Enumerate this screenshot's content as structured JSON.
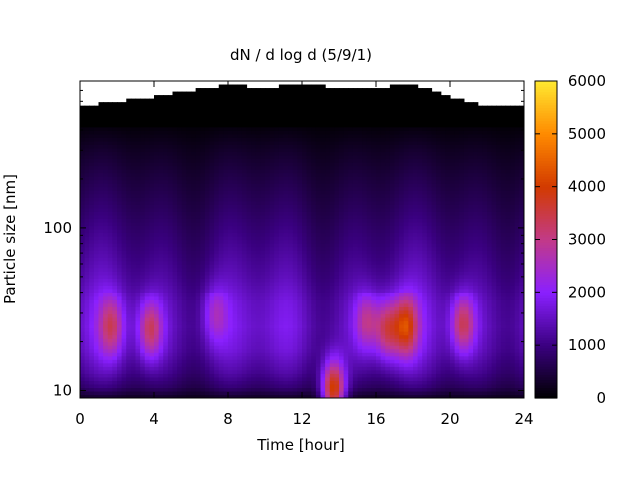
{
  "chart_data": {
    "type": "heatmap",
    "title": "dN / d log d (5/9/1)",
    "xlabel": "Time [hour]",
    "ylabel": "Particle size [nm]",
    "x_ticks": [
      0,
      4,
      8,
      12,
      16,
      20,
      24
    ],
    "xlim": [
      0,
      24
    ],
    "y_scale": "log",
    "ylim": [
      9,
      800
    ],
    "y_ticks": [
      10,
      100
    ],
    "colorbar": {
      "range": [
        0,
        6000
      ],
      "ticks": [
        0,
        1000,
        2000,
        3000,
        4000,
        5000,
        6000
      ],
      "palette": [
        "#000000",
        "#3a0080",
        "#8a20ff",
        "#c23a88",
        "#d23a00",
        "#ff8a00",
        "#ffe830"
      ]
    },
    "base_profile": [
      {
        "size_nm": 9.3,
        "value": 400
      },
      {
        "size_nm": 10.5,
        "value": 900
      },
      {
        "size_nm": 13,
        "value": 1300
      },
      {
        "size_nm": 18,
        "value": 1700
      },
      {
        "size_nm": 25,
        "value": 1850
      },
      {
        "size_nm": 35,
        "value": 1750
      },
      {
        "size_nm": 50,
        "value": 1450
      },
      {
        "size_nm": 80,
        "value": 1150
      },
      {
        "size_nm": 130,
        "value": 850
      },
      {
        "size_nm": 200,
        "value": 600
      },
      {
        "size_nm": 300,
        "value": 350
      },
      {
        "size_nm": 420,
        "value": 100
      }
    ],
    "hotspots": [
      {
        "hour": 1.7,
        "size_nm": 25,
        "value": 3200
      },
      {
        "hour": 3.8,
        "size_nm": 24,
        "value": 3500
      },
      {
        "hour": 7.3,
        "size_nm": 30,
        "value": 2700
      },
      {
        "hour": 13.7,
        "size_nm": 10,
        "value": 5200
      },
      {
        "hour": 15.5,
        "size_nm": 27,
        "value": 3100
      },
      {
        "hour": 16.6,
        "size_nm": 24,
        "value": 3600
      },
      {
        "hour": 17.6,
        "size_nm": 25,
        "value": 4000
      },
      {
        "hour": 20.7,
        "size_nm": 26,
        "value": 3600
      }
    ],
    "upper_data_limit_nm": [
      {
        "hour": 0,
        "size_nm": 560
      },
      {
        "hour": 2,
        "size_nm": 600
      },
      {
        "hour": 4,
        "size_nm": 640
      },
      {
        "hour": 6,
        "size_nm": 700
      },
      {
        "hour": 8,
        "size_nm": 760
      },
      {
        "hour": 10,
        "size_nm": 720
      },
      {
        "hour": 12,
        "size_nm": 780
      },
      {
        "hour": 14,
        "size_nm": 720
      },
      {
        "hour": 16,
        "size_nm": 730
      },
      {
        "hour": 18,
        "size_nm": 760
      },
      {
        "hour": 20,
        "size_nm": 640
      },
      {
        "hour": 22,
        "size_nm": 560
      },
      {
        "hour": 24,
        "size_nm": 560
      }
    ],
    "missing_above_limit": "white",
    "grid": false
  }
}
